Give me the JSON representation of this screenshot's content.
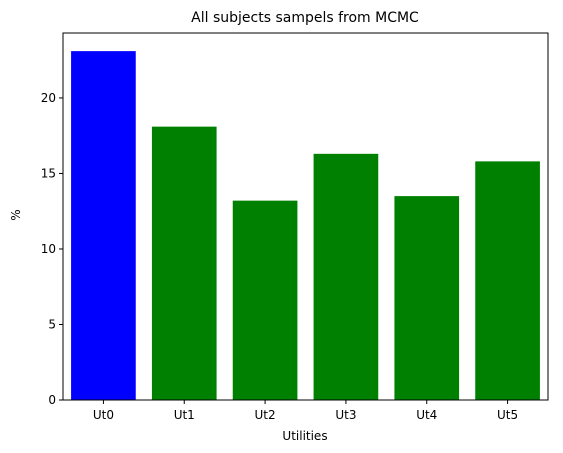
{
  "chart_data": {
    "type": "bar",
    "title": "All subjects sampels from MCMC",
    "xlabel": "Utilities",
    "ylabel": "%",
    "categories": [
      "Ut0",
      "Ut1",
      "Ut2",
      "Ut3",
      "Ut4",
      "Ut5"
    ],
    "values": [
      23.1,
      18.1,
      13.2,
      16.3,
      13.5,
      15.8
    ],
    "colors": [
      "#0000ff",
      "#008000",
      "#008000",
      "#008000",
      "#008000",
      "#008000"
    ],
    "yticks": [
      0,
      5,
      10,
      15,
      20
    ],
    "ytick_labels": [
      "0",
      "5",
      "10",
      "15",
      "20"
    ],
    "ylim": [
      0,
      24.3
    ],
    "grid": false,
    "legend": "none"
  }
}
